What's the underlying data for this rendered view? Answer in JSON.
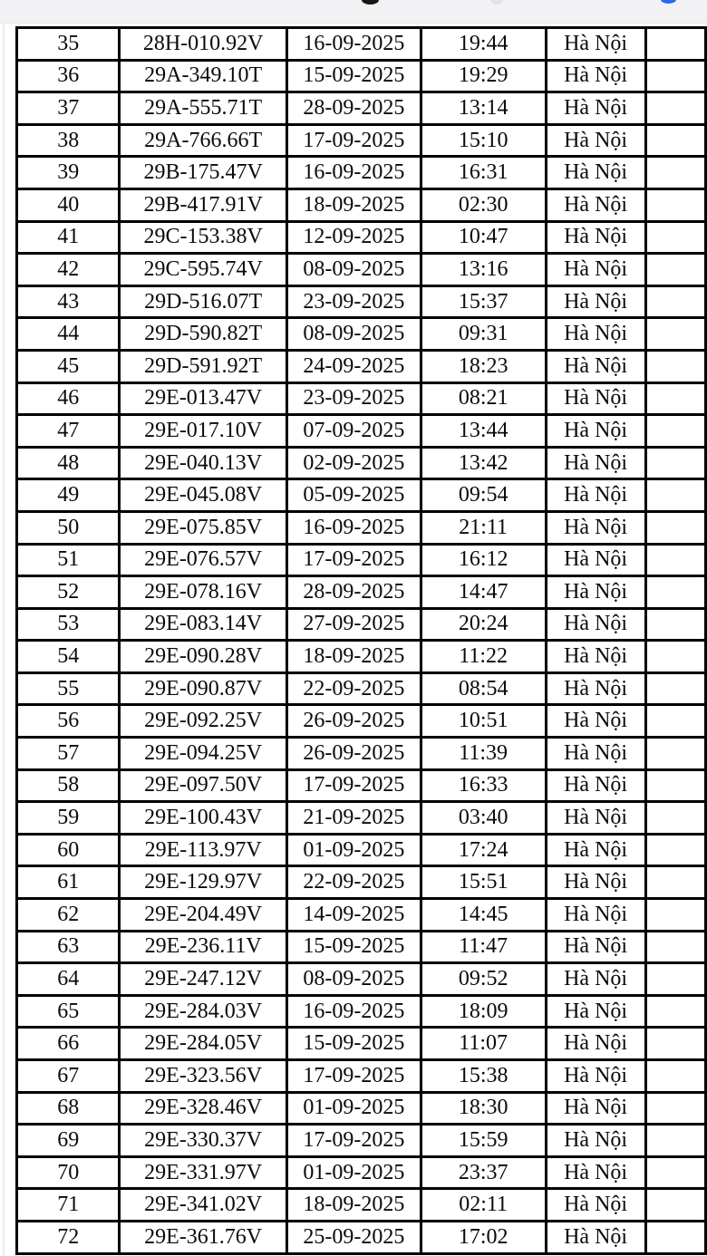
{
  "colors": {
    "page_background": "#ffffff",
    "top_bar_background": "#f2f2f4",
    "table_border": "#000000",
    "text": "#0a0a0a",
    "blue_dot": "#1f6ef0",
    "dark_dot": "#161616"
  },
  "top_bar": {
    "note_dark_dot": "clipped descender of text above",
    "note_blue_dot": "clipped blue glyph/icon above"
  },
  "table": {
    "rows": [
      {
        "stt": "35",
        "plate": "28H-010.92V",
        "date": "16-09-2025",
        "time": "19:44",
        "city": "Hà Nội"
      },
      {
        "stt": "36",
        "plate": "29A-349.10T",
        "date": "15-09-2025",
        "time": "19:29",
        "city": "Hà Nội"
      },
      {
        "stt": "37",
        "plate": "29A-555.71T",
        "date": "28-09-2025",
        "time": "13:14",
        "city": "Hà Nội"
      },
      {
        "stt": "38",
        "plate": "29A-766.66T",
        "date": "17-09-2025",
        "time": "15:10",
        "city": "Hà Nội"
      },
      {
        "stt": "39",
        "plate": "29B-175.47V",
        "date": "16-09-2025",
        "time": "16:31",
        "city": "Hà Nội"
      },
      {
        "stt": "40",
        "plate": "29B-417.91V",
        "date": "18-09-2025",
        "time": "02:30",
        "city": "Hà Nội"
      },
      {
        "stt": "41",
        "plate": "29C-153.38V",
        "date": "12-09-2025",
        "time": "10:47",
        "city": "Hà Nội"
      },
      {
        "stt": "42",
        "plate": "29C-595.74V",
        "date": "08-09-2025",
        "time": "13:16",
        "city": "Hà Nội"
      },
      {
        "stt": "43",
        "plate": "29D-516.07T",
        "date": "23-09-2025",
        "time": "15:37",
        "city": "Hà Nội"
      },
      {
        "stt": "44",
        "plate": "29D-590.82T",
        "date": "08-09-2025",
        "time": "09:31",
        "city": "Hà Nội"
      },
      {
        "stt": "45",
        "plate": "29D-591.92T",
        "date": "24-09-2025",
        "time": "18:23",
        "city": "Hà Nội"
      },
      {
        "stt": "46",
        "plate": "29E-013.47V",
        "date": "23-09-2025",
        "time": "08:21",
        "city": "Hà Nội"
      },
      {
        "stt": "47",
        "plate": "29E-017.10V",
        "date": "07-09-2025",
        "time": "13:44",
        "city": "Hà Nội"
      },
      {
        "stt": "48",
        "plate": "29E-040.13V",
        "date": "02-09-2025",
        "time": "13:42",
        "city": "Hà Nội"
      },
      {
        "stt": "49",
        "plate": "29E-045.08V",
        "date": "05-09-2025",
        "time": "09:54",
        "city": "Hà Nội"
      },
      {
        "stt": "50",
        "plate": "29E-075.85V",
        "date": "16-09-2025",
        "time": "21:11",
        "city": "Hà Nội"
      },
      {
        "stt": "51",
        "plate": "29E-076.57V",
        "date": "17-09-2025",
        "time": "16:12",
        "city": "Hà Nội"
      },
      {
        "stt": "52",
        "plate": "29E-078.16V",
        "date": "28-09-2025",
        "time": "14:47",
        "city": "Hà Nội"
      },
      {
        "stt": "53",
        "plate": "29E-083.14V",
        "date": "27-09-2025",
        "time": "20:24",
        "city": "Hà Nội"
      },
      {
        "stt": "54",
        "plate": "29E-090.28V",
        "date": "18-09-2025",
        "time": "11:22",
        "city": "Hà Nội"
      },
      {
        "stt": "55",
        "plate": "29E-090.87V",
        "date": "22-09-2025",
        "time": "08:54",
        "city": "Hà Nội"
      },
      {
        "stt": "56",
        "plate": "29E-092.25V",
        "date": "26-09-2025",
        "time": "10:51",
        "city": "Hà Nội"
      },
      {
        "stt": "57",
        "plate": "29E-094.25V",
        "date": "26-09-2025",
        "time": "11:39",
        "city": "Hà Nội"
      },
      {
        "stt": "58",
        "plate": "29E-097.50V",
        "date": "17-09-2025",
        "time": "16:33",
        "city": "Hà Nội"
      },
      {
        "stt": "59",
        "plate": "29E-100.43V",
        "date": "21-09-2025",
        "time": "03:40",
        "city": "Hà Nội"
      },
      {
        "stt": "60",
        "plate": "29E-113.97V",
        "date": "01-09-2025",
        "time": "17:24",
        "city": "Hà Nội"
      },
      {
        "stt": "61",
        "plate": "29E-129.97V",
        "date": "22-09-2025",
        "time": "15:51",
        "city": "Hà Nội"
      },
      {
        "stt": "62",
        "plate": "29E-204.49V",
        "date": "14-09-2025",
        "time": "14:45",
        "city": "Hà Nội"
      },
      {
        "stt": "63",
        "plate": "29E-236.11V",
        "date": "15-09-2025",
        "time": "11:47",
        "city": "Hà Nội"
      },
      {
        "stt": "64",
        "plate": "29E-247.12V",
        "date": "08-09-2025",
        "time": "09:52",
        "city": "Hà Nội"
      },
      {
        "stt": "65",
        "plate": "29E-284.03V",
        "date": "16-09-2025",
        "time": "18:09",
        "city": "Hà Nội"
      },
      {
        "stt": "66",
        "plate": "29E-284.05V",
        "date": "15-09-2025",
        "time": "11:07",
        "city": "Hà Nội"
      },
      {
        "stt": "67",
        "plate": "29E-323.56V",
        "date": "17-09-2025",
        "time": "15:38",
        "city": "Hà Nội"
      },
      {
        "stt": "68",
        "plate": "29E-328.46V",
        "date": "01-09-2025",
        "time": "18:30",
        "city": "Hà Nội"
      },
      {
        "stt": "69",
        "plate": "29E-330.37V",
        "date": "17-09-2025",
        "time": "15:59",
        "city": "Hà Nội"
      },
      {
        "stt": "70",
        "plate": "29E-331.97V",
        "date": "01-09-2025",
        "time": "23:37",
        "city": "Hà Nội"
      },
      {
        "stt": "71",
        "plate": "29E-341.02V",
        "date": "18-09-2025",
        "time": "02:11",
        "city": "Hà Nội"
      },
      {
        "stt": "72",
        "plate": "29E-361.76V",
        "date": "25-09-2025",
        "time": "17:02",
        "city": "Hà Nội"
      }
    ]
  }
}
